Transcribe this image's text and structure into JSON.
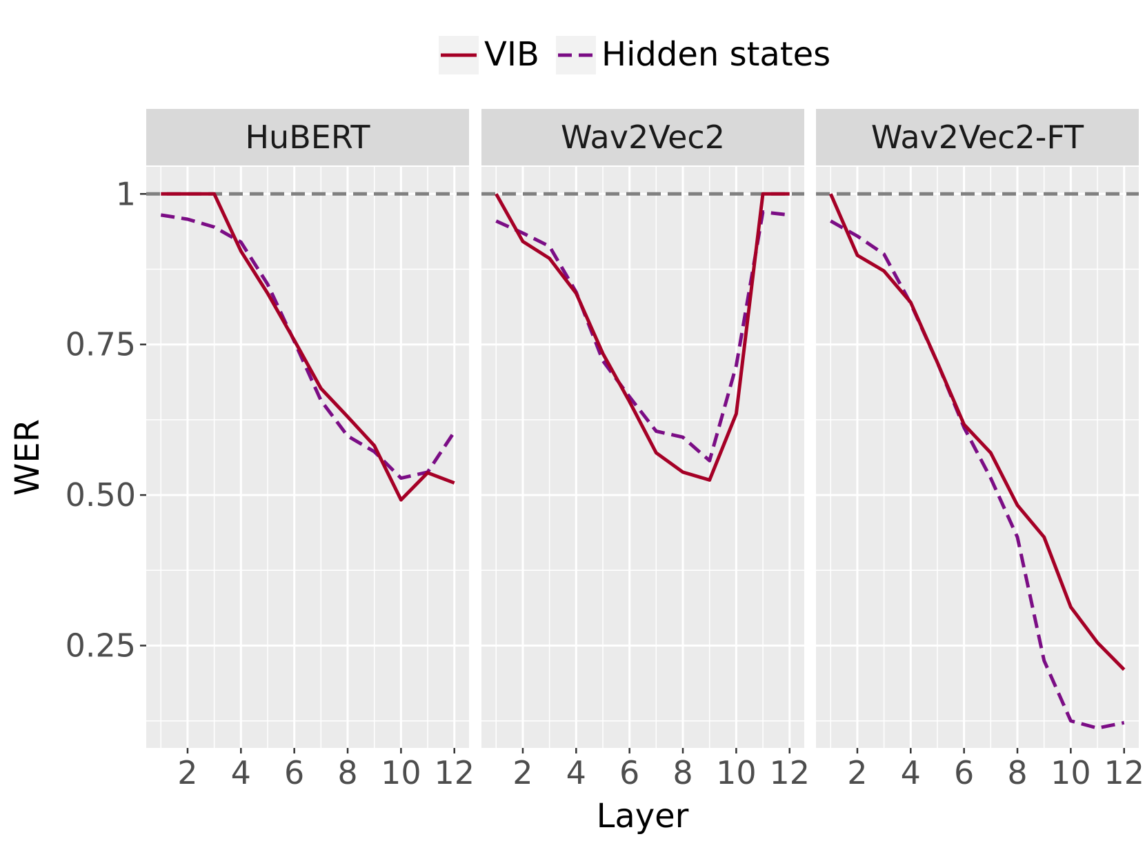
{
  "legend": {
    "position": "top",
    "items": [
      {
        "label": "VIB",
        "color": "#a50026",
        "dash": "solid"
      },
      {
        "label": "Hidden states",
        "color": "#7b0d85",
        "dash": "dashed"
      }
    ]
  },
  "chart_data": {
    "type": "line",
    "xlabel": "Layer",
    "ylabel": "WER",
    "xlim": [
      0.45,
      12.55
    ],
    "ylim": [
      0.08,
      1.045
    ],
    "x_ticks": [
      2,
      4,
      6,
      8,
      10,
      12
    ],
    "y_ticks": [
      0.25,
      0.5,
      0.75,
      1.0
    ],
    "y_tick_labels": [
      "0.25",
      "0.50",
      "0.75",
      "1"
    ],
    "grid": true,
    "reference_line": {
      "y": 1.0,
      "color": "#808080",
      "style": "dashed"
    },
    "x": [
      1,
      2,
      3,
      4,
      5,
      6,
      7,
      8,
      9,
      10,
      11,
      12
    ],
    "facets": [
      {
        "title": "HuBERT",
        "series": [
          {
            "name": "VIB",
            "values": [
              1.0,
              1.0,
              1.0,
              0.905,
              0.835,
              0.757,
              0.677,
              0.63,
              0.582,
              0.492,
              0.537,
              0.52
            ]
          },
          {
            "name": "Hidden states",
            "values": [
              0.965,
              0.958,
              0.945,
              0.92,
              0.85,
              0.755,
              0.657,
              0.598,
              0.572,
              0.528,
              0.538,
              0.605
            ]
          }
        ]
      },
      {
        "title": "Wav2Vec2",
        "series": [
          {
            "name": "VIB",
            "values": [
              1.0,
              0.921,
              0.893,
              0.835,
              0.735,
              0.655,
              0.57,
              0.538,
              0.525,
              0.635,
              1.0,
              1.0
            ]
          },
          {
            "name": "Hidden states",
            "values": [
              0.955,
              0.935,
              0.913,
              0.837,
              0.723,
              0.663,
              0.606,
              0.596,
              0.557,
              0.715,
              0.97,
              0.965
            ]
          }
        ]
      },
      {
        "title": "Wav2Vec2-FT",
        "series": [
          {
            "name": "VIB",
            "values": [
              1.0,
              0.898,
              0.872,
              0.82,
              0.72,
              0.617,
              0.57,
              0.483,
              0.43,
              0.314,
              0.255,
              0.21
            ]
          },
          {
            "name": "Hidden states",
            "values": [
              0.955,
              0.93,
              0.9,
              0.818,
              0.72,
              0.612,
              0.528,
              0.43,
              0.225,
              0.125,
              0.113,
              0.122
            ]
          }
        ]
      }
    ]
  }
}
